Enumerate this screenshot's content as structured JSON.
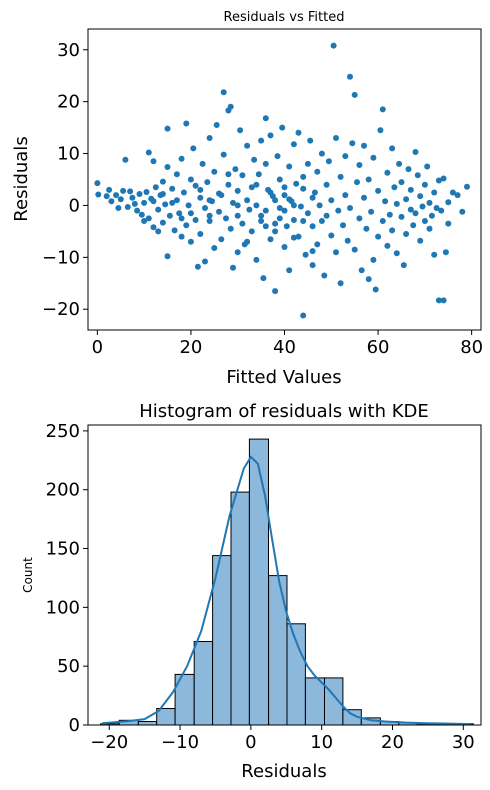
{
  "chart_data": [
    {
      "type": "scatter",
      "title": "Residuals vs Fitted",
      "xlabel": "Fitted Values",
      "ylabel": "Residuals",
      "xlim": [
        -2,
        82
      ],
      "ylim": [
        -24,
        34
      ],
      "xticks": [
        0,
        20,
        40,
        60,
        80
      ],
      "yticks": [
        -20,
        -10,
        0,
        10,
        20,
        30
      ],
      "grid": false,
      "color": "#1f77b4",
      "points": [
        [
          0,
          4.3
        ],
        [
          0.2,
          2.1
        ],
        [
          2,
          1.8
        ],
        [
          2.5,
          3
        ],
        [
          3,
          0.8
        ],
        [
          4,
          2
        ],
        [
          4.5,
          -0.5
        ],
        [
          5,
          1.2
        ],
        [
          5.5,
          2.8
        ],
        [
          6,
          8.8
        ],
        [
          6.5,
          -0.3
        ],
        [
          7,
          2.7
        ],
        [
          7.5,
          1.5
        ],
        [
          8,
          0.3
        ],
        [
          8.5,
          -1
        ],
        [
          9,
          2.2
        ],
        [
          9.5,
          -1.8
        ],
        [
          10,
          0.5
        ],
        [
          10,
          -3
        ],
        [
          10.5,
          2.6
        ],
        [
          11,
          10.2
        ],
        [
          11,
          -2.5
        ],
        [
          11.5,
          1.3
        ],
        [
          12,
          8.5
        ],
        [
          12,
          -4.2
        ],
        [
          12.5,
          3.5
        ],
        [
          13,
          -0.8
        ],
        [
          13,
          -5
        ],
        [
          13.5,
          2
        ],
        [
          14,
          4.6
        ],
        [
          14,
          -3.3
        ],
        [
          14.5,
          0.2
        ],
        [
          15,
          14.8
        ],
        [
          15,
          -9.8
        ],
        [
          15,
          7.4
        ],
        [
          15.5,
          -2
        ],
        [
          16,
          3.2
        ],
        [
          16.5,
          -4.8
        ],
        [
          17,
          1
        ],
        [
          17,
          6
        ],
        [
          17.5,
          -1.5
        ],
        [
          18,
          9
        ],
        [
          18,
          -6
        ],
        [
          18.5,
          2.5
        ],
        [
          19,
          15.8
        ],
        [
          19,
          -3.8
        ],
        [
          19.5,
          0
        ],
        [
          20,
          5
        ],
        [
          20,
          -7
        ],
        [
          20.5,
          11
        ],
        [
          21,
          -2.8
        ],
        [
          21,
          3.8
        ],
        [
          21.5,
          -11.8
        ],
        [
          22,
          1.5
        ],
        [
          22,
          -5.5
        ],
        [
          22.5,
          8
        ],
        [
          23,
          -0.5
        ],
        [
          23,
          -10.8
        ],
        [
          23.5,
          4.5
        ],
        [
          24,
          13
        ],
        [
          24,
          -3
        ],
        [
          24.5,
          0.8
        ],
        [
          25,
          6.5
        ],
        [
          25,
          -8.2
        ],
        [
          25.5,
          15.5
        ],
        [
          26,
          -1.2
        ],
        [
          26,
          2.3
        ],
        [
          26.5,
          -6.5
        ],
        [
          27,
          9.8
        ],
        [
          27,
          21.8
        ],
        [
          27.5,
          -2.5
        ],
        [
          28,
          18.3
        ],
        [
          28,
          4
        ],
        [
          28.5,
          19
        ],
        [
          28.5,
          -4.5
        ],
        [
          29,
          0.5
        ],
        [
          29,
          -12
        ],
        [
          29.5,
          7
        ],
        [
          30,
          -9
        ],
        [
          30,
          2.8
        ],
        [
          30.5,
          14.5
        ],
        [
          31,
          -3.5
        ],
        [
          31,
          5.8
        ],
        [
          31.5,
          -7.5
        ],
        [
          32,
          1
        ],
        [
          32,
          11.5
        ],
        [
          32.5,
          -0.8
        ],
        [
          33,
          -5
        ],
        [
          33,
          3.5
        ],
        [
          33.5,
          8.8
        ],
        [
          34,
          -10.5
        ],
        [
          34,
          0
        ],
        [
          34.5,
          6
        ],
        [
          35,
          -2
        ],
        [
          35,
          12.5
        ],
        [
          35.5,
          -14
        ],
        [
          36,
          16.8
        ],
        [
          36,
          -1
        ],
        [
          36.5,
          3
        ],
        [
          37,
          -6.5
        ],
        [
          37,
          13.5
        ],
        [
          37.5,
          1.8
        ],
        [
          38,
          -3.5
        ],
        [
          38,
          -16.5
        ],
        [
          38.5,
          9.5
        ],
        [
          39,
          -0.5
        ],
        [
          39,
          5
        ],
        [
          39.5,
          15
        ],
        [
          40,
          -8
        ],
        [
          40,
          2
        ],
        [
          40.5,
          -4
        ],
        [
          41,
          7.5
        ],
        [
          41,
          -12.5
        ],
        [
          41.5,
          0.8
        ],
        [
          42,
          11.8
        ],
        [
          42,
          -2.8
        ],
        [
          42.5,
          4.2
        ],
        [
          43,
          -6
        ],
        [
          43,
          14
        ],
        [
          43.5,
          -0.2
        ],
        [
          44,
          -21.2
        ],
        [
          44,
          3.2
        ],
        [
          44.5,
          -9.5
        ],
        [
          45,
          8
        ],
        [
          45,
          -1.5
        ],
        [
          45.5,
          12.5
        ],
        [
          46,
          -11.5
        ],
        [
          46,
          -4
        ],
        [
          46.5,
          2.5
        ],
        [
          47,
          6.5
        ],
        [
          47,
          -7.5
        ],
        [
          47.5,
          0
        ],
        [
          48,
          -3
        ],
        [
          48,
          10
        ],
        [
          48.5,
          -13.5
        ],
        [
          49,
          4
        ],
        [
          49,
          -2
        ],
        [
          49.5,
          8.5
        ],
        [
          50,
          -5.8
        ],
        [
          50,
          1
        ],
        [
          50.5,
          30.8
        ],
        [
          51,
          -9
        ],
        [
          51,
          13
        ],
        [
          51.5,
          -1
        ],
        [
          52,
          5.5
        ],
        [
          52,
          -15
        ],
        [
          52.5,
          -3.8
        ],
        [
          53,
          9.5
        ],
        [
          53,
          2
        ],
        [
          53.5,
          -6.8
        ],
        [
          54,
          24.8
        ],
        [
          54,
          -0.5
        ],
        [
          54.5,
          12
        ],
        [
          55,
          21.3
        ],
        [
          55,
          -8.5
        ],
        [
          55.5,
          4.5
        ],
        [
          56,
          -2.5
        ],
        [
          56,
          7.8
        ],
        [
          56.5,
          -12.5
        ],
        [
          57,
          1.5
        ],
        [
          57,
          11.5
        ],
        [
          57.5,
          -4.5
        ],
        [
          58,
          -14.2
        ],
        [
          58,
          5
        ],
        [
          58.5,
          -1.2
        ],
        [
          59,
          -10.5
        ],
        [
          59,
          9.2
        ],
        [
          59.5,
          -16.2
        ],
        [
          60,
          2.8
        ],
        [
          60,
          -6
        ],
        [
          60.5,
          14.5
        ],
        [
          61,
          18.5
        ],
        [
          61,
          -3
        ],
        [
          61.5,
          0.8
        ],
        [
          62,
          -7.8
        ],
        [
          62,
          6.3
        ],
        [
          62.5,
          -1.8
        ],
        [
          63,
          11
        ],
        [
          63,
          -4.8
        ],
        [
          63.5,
          3.5
        ],
        [
          64,
          -9.2
        ],
        [
          64,
          0.3
        ],
        [
          64.5,
          8
        ],
        [
          65,
          -2.2
        ],
        [
          65,
          4.5
        ],
        [
          65.5,
          -11.5
        ],
        [
          66,
          1.2
        ],
        [
          66,
          -5.5
        ],
        [
          66.5,
          7
        ],
        [
          67,
          -0.8
        ],
        [
          67,
          3
        ],
        [
          67.5,
          -3.8
        ],
        [
          68,
          10.3
        ],
        [
          68,
          -1.5
        ],
        [
          68.5,
          5.8
        ],
        [
          69,
          -6.8
        ],
        [
          69,
          1.8
        ],
        [
          69.5,
          -0.2
        ],
        [
          70,
          4
        ],
        [
          70,
          -3
        ],
        [
          70.5,
          7.5
        ],
        [
          71,
          -4.5
        ],
        [
          71,
          0.5
        ],
        [
          71.5,
          -2
        ],
        [
          72,
          2.5
        ],
        [
          72,
          -9.5
        ],
        [
          72.5,
          -0.5
        ],
        [
          73,
          -18.3
        ],
        [
          73,
          4.8
        ],
        [
          73.5,
          -1
        ],
        [
          74,
          -18.3
        ],
        [
          74,
          5.2
        ],
        [
          74.5,
          -9
        ],
        [
          75,
          0.6
        ],
        [
          75,
          -3.5
        ],
        [
          76,
          2.5
        ],
        [
          77,
          2
        ],
        [
          78,
          -1.2
        ],
        [
          79,
          3.6
        ],
        [
          26.5,
          2
        ],
        [
          30,
          -2
        ],
        [
          34,
          4
        ],
        [
          36,
          -4
        ],
        [
          38,
          1
        ],
        [
          40,
          -1
        ],
        [
          42,
          0
        ],
        [
          44,
          -3
        ],
        [
          46,
          1.5
        ],
        [
          20,
          -1.5
        ],
        [
          22,
          3
        ],
        [
          24,
          -2
        ],
        [
          28,
          6
        ],
        [
          32,
          -7
        ],
        [
          36,
          8
        ],
        [
          38,
          -5
        ],
        [
          40,
          3.5
        ],
        [
          42,
          -6.2
        ],
        [
          44,
          5.5
        ],
        [
          46,
          -8.8
        ],
        [
          16,
          0.5
        ],
        [
          18,
          -2.5
        ],
        [
          14,
          2.2
        ],
        [
          12,
          0.8
        ],
        [
          24,
          1
        ],
        [
          30,
          0
        ],
        [
          35,
          -3
        ],
        [
          37,
          2.5
        ],
        [
          39,
          -2.5
        ],
        [
          41,
          1.2
        ]
      ]
    },
    {
      "type": "bar",
      "title": "Histogram of residuals with KDE",
      "xlabel": "Residuals",
      "ylabel": "Count",
      "xlim": [
        -23,
        32.5
      ],
      "ylim": [
        0,
        255
      ],
      "xticks": [
        -20,
        -10,
        0,
        10,
        20,
        30
      ],
      "yticks": [
        0,
        50,
        100,
        150,
        200,
        250
      ],
      "grid": false,
      "bar_color": "#8cb8dc",
      "edge_color": "#000000",
      "line_color": "#1f77b4",
      "bins": [
        {
          "left": -21.2,
          "right": -18.6,
          "count": 1
        },
        {
          "left": -18.6,
          "right": -15.9,
          "count": 4
        },
        {
          "left": -15.9,
          "right": -13.3,
          "count": 3
        },
        {
          "left": -13.3,
          "right": -10.7,
          "count": 14
        },
        {
          "left": -10.7,
          "right": -8.0,
          "count": 43
        },
        {
          "left": -8.0,
          "right": -5.4,
          "count": 71
        },
        {
          "left": -5.4,
          "right": -2.8,
          "count": 144
        },
        {
          "left": -2.8,
          "right": -0.2,
          "count": 198
        },
        {
          "left": -0.2,
          "right": 2.5,
          "count": 243
        },
        {
          "left": 2.5,
          "right": 5.1,
          "count": 127
        },
        {
          "left": 5.1,
          "right": 7.7,
          "count": 86
        },
        {
          "left": 7.7,
          "right": 10.4,
          "count": 40
        },
        {
          "left": 10.4,
          "right": 13.0,
          "count": 40
        },
        {
          "left": 13.0,
          "right": 15.6,
          "count": 13
        },
        {
          "left": 15.6,
          "right": 18.3,
          "count": 6
        },
        {
          "left": 18.3,
          "right": 20.9,
          "count": 3
        },
        {
          "left": 20.9,
          "right": 23.5,
          "count": 2
        },
        {
          "left": 23.5,
          "right": 26.2,
          "count": 1
        },
        {
          "left": 26.2,
          "right": 28.8,
          "count": 1
        },
        {
          "left": 28.8,
          "right": 31.4,
          "count": 1
        }
      ],
      "kde": [
        [
          -21,
          1.5
        ],
        [
          -19,
          2.5
        ],
        [
          -17,
          3.5
        ],
        [
          -15,
          5
        ],
        [
          -13,
          12
        ],
        [
          -11,
          28
        ],
        [
          -9,
          50
        ],
        [
          -7,
          80
        ],
        [
          -5,
          125
        ],
        [
          -3,
          178
        ],
        [
          -1,
          218
        ],
        [
          0,
          228
        ],
        [
          1,
          222
        ],
        [
          2,
          195
        ],
        [
          3,
          158
        ],
        [
          4,
          122
        ],
        [
          5,
          96
        ],
        [
          6,
          77
        ],
        [
          7,
          62
        ],
        [
          8,
          50
        ],
        [
          9,
          42
        ],
        [
          10,
          36
        ],
        [
          11,
          30
        ],
        [
          12,
          23
        ],
        [
          13,
          16
        ],
        [
          14,
          10
        ],
        [
          15,
          7
        ],
        [
          17,
          4
        ],
        [
          19,
          3
        ],
        [
          22,
          2
        ],
        [
          25,
          1.5
        ],
        [
          28,
          1.2
        ],
        [
          31,
          0.8
        ]
      ]
    }
  ]
}
